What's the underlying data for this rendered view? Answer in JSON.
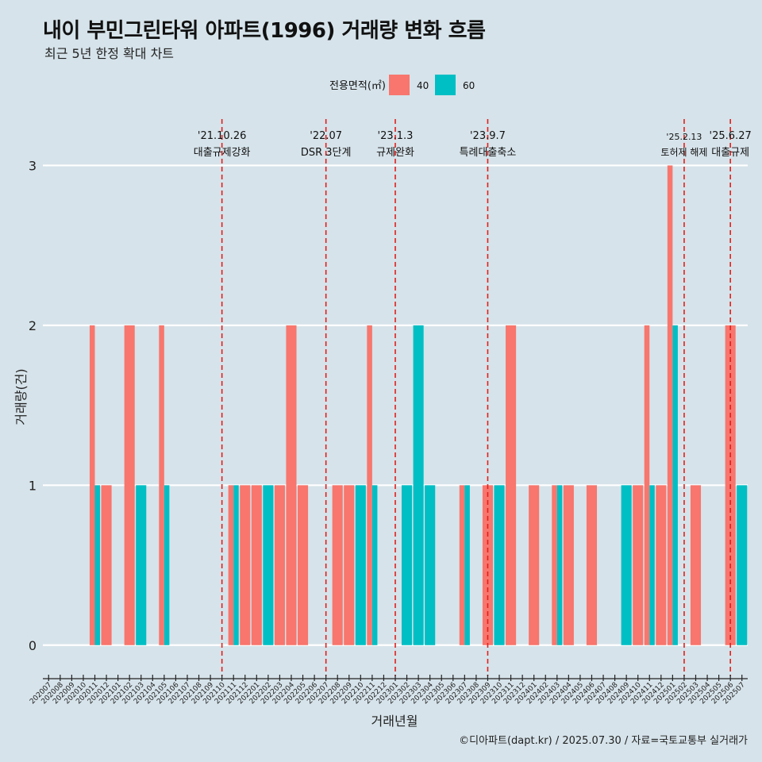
{
  "chart_data": {
    "type": "bar",
    "title": "내이 부민그린타워 아파트(1996) 거래량 변화 흐름",
    "subtitle": "최근 5년 한정 확대 차트",
    "xlabel": "거래년월",
    "ylabel": "거래량(건)",
    "caption": "©디아파트(dapt.kr) / 2025.07.30 / 자료=국토교통부 실거래가",
    "legend_title": "전용면적(㎡)",
    "ylim": [
      -0.15,
      3.3
    ],
    "yticks": [
      0,
      1,
      2,
      3
    ],
    "categories": [
      "202007",
      "202008",
      "202009",
      "202010",
      "202011",
      "202012",
      "202101",
      "202102",
      "202103",
      "202104",
      "202105",
      "202106",
      "202107",
      "202108",
      "202109",
      "202110",
      "202111",
      "202112",
      "202201",
      "202202",
      "202203",
      "202204",
      "202205",
      "202206",
      "202207",
      "202208",
      "202209",
      "202210",
      "202211",
      "202212",
      "202301",
      "202302",
      "202303",
      "202304",
      "202305",
      "202306",
      "202307",
      "202308",
      "202309",
      "202310",
      "202311",
      "202312",
      "202401",
      "202402",
      "202403",
      "202404",
      "202405",
      "202406",
      "202407",
      "202408",
      "202409",
      "202410",
      "202411",
      "202412",
      "202501",
      "202502",
      "202503",
      "202504",
      "202505",
      "202506",
      "202507"
    ],
    "series": [
      {
        "name": "40",
        "color": "#f8766d",
        "values": [
          0,
          0,
          0,
          0,
          2,
          1,
          0,
          2,
          0,
          0,
          2,
          0,
          0,
          0,
          0,
          0,
          1,
          1,
          1,
          0,
          1,
          2,
          1,
          0,
          0,
          1,
          1,
          0,
          2,
          0,
          0,
          0,
          0,
          0,
          0,
          0,
          1,
          0,
          1,
          0,
          2,
          0,
          1,
          0,
          1,
          1,
          0,
          1,
          0,
          0,
          0,
          1,
          2,
          1,
          3,
          0,
          1,
          0,
          0,
          2,
          0
        ]
      },
      {
        "name": "60",
        "color": "#00bfc4",
        "values": [
          0,
          0,
          0,
          0,
          1,
          0,
          0,
          0,
          1,
          0,
          1,
          0,
          0,
          0,
          0,
          0,
          1,
          0,
          0,
          1,
          0,
          0,
          0,
          0,
          0,
          0,
          0,
          1,
          1,
          0,
          0,
          1,
          2,
          1,
          0,
          0,
          1,
          0,
          0,
          1,
          0,
          0,
          0,
          0,
          1,
          0,
          0,
          0,
          0,
          0,
          1,
          0,
          1,
          0,
          2,
          0,
          0,
          0,
          0,
          0,
          1
        ]
      }
    ],
    "events": [
      {
        "category": "202110",
        "date": "'21.10.26",
        "label": "대출규제강화"
      },
      {
        "category": "202207",
        "date": "'22.07",
        "label": "DSR 3단계"
      },
      {
        "category": "202301",
        "date": "'23.1.3",
        "label": "규제완화"
      },
      {
        "category": "202309",
        "date": "'23.9.7",
        "label": "특례대출축소"
      },
      {
        "category": "202502",
        "date": "'25.2.13",
        "label": "토허제 해제"
      },
      {
        "category": "202506",
        "date": "'25.6.27",
        "label": "대출규제"
      }
    ]
  }
}
